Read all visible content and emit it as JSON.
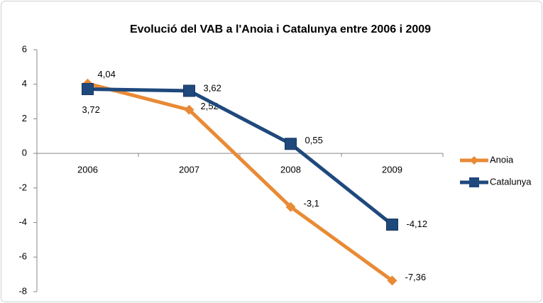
{
  "chart_data": {
    "type": "line",
    "title": "Evolució del VAB a l'Anoia i Catalunya entre 2006 i 2009",
    "categories": [
      "2006",
      "2007",
      "2008",
      "2009"
    ],
    "series": [
      {
        "name": "Anoia",
        "color": "#e98a35",
        "values": [
          4.04,
          2.52,
          -3.1,
          -7.36
        ],
        "value_labels": [
          "4,04",
          "2,52",
          "-3,1",
          "-7,36"
        ]
      },
      {
        "name": "Catalunya",
        "color": "#1f497d",
        "values": [
          3.72,
          3.62,
          0.55,
          -4.12
        ],
        "value_labels": [
          "3,72",
          "3,62",
          "0,55",
          "-4,12"
        ]
      }
    ],
    "ylim": [
      -8,
      6
    ],
    "yticks": [
      -8,
      -6,
      -4,
      -2,
      0,
      2,
      4,
      6
    ],
    "legend": "right"
  }
}
